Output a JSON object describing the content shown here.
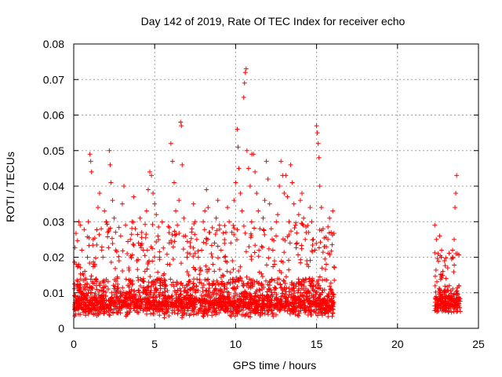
{
  "chart_data": {
    "type": "scatter",
    "title": "Day 142 of 2019, Rate Of TEC Index for receiver echo",
    "xlabel": "GPS time / hours",
    "ylabel": "ROTI / TECUs",
    "xlim": [
      0,
      25
    ],
    "ylim": [
      0,
      0.08
    ],
    "x_ticks": [
      0,
      5,
      10,
      15,
      20,
      25
    ],
    "y_ticks": [
      0,
      0.01,
      0.02,
      0.03,
      0.04,
      0.05,
      0.06,
      0.07,
      0.08
    ],
    "x_tick_labels": [
      "0",
      "5",
      "10",
      "15",
      "20",
      "25"
    ],
    "y_tick_labels": [
      "0",
      "0.01",
      "0.02",
      "0.03",
      "0.04",
      "0.05",
      "0.06",
      "0.07",
      "0.08"
    ],
    "grid": true,
    "marker": "+",
    "color": "#ff0000",
    "series": [
      {
        "points": [
          [
            0.1,
            0.009
          ],
          [
            0.2,
            0.012
          ],
          [
            0.3,
            0.018
          ],
          [
            0.4,
            0.029
          ],
          [
            0.5,
            0.022
          ],
          [
            0.6,
            0.015
          ],
          [
            0.7,
            0.011
          ],
          [
            0.8,
            0.008
          ],
          [
            0.9,
            0.03
          ],
          [
            1.0,
            0.049
          ],
          [
            1.05,
            0.047
          ],
          [
            1.1,
            0.044
          ],
          [
            1.2,
            0.025
          ],
          [
            1.3,
            0.018
          ],
          [
            1.4,
            0.012
          ],
          [
            1.5,
            0.034
          ],
          [
            1.6,
            0.038
          ],
          [
            1.7,
            0.028
          ],
          [
            1.8,
            0.02
          ],
          [
            1.9,
            0.033
          ],
          [
            2.0,
            0.03
          ],
          [
            2.1,
            0.027
          ],
          [
            2.2,
            0.05
          ],
          [
            2.25,
            0.046
          ],
          [
            2.3,
            0.041
          ],
          [
            2.4,
            0.036
          ],
          [
            2.5,
            0.031
          ],
          [
            2.6,
            0.022
          ],
          [
            2.7,
            0.014
          ],
          [
            2.8,
            0.019
          ],
          [
            2.9,
            0.026
          ],
          [
            3.0,
            0.035
          ],
          [
            3.1,
            0.04
          ],
          [
            3.2,
            0.029
          ],
          [
            3.3,
            0.021
          ],
          [
            3.4,
            0.017
          ],
          [
            3.5,
            0.025
          ],
          [
            3.6,
            0.03
          ],
          [
            3.7,
            0.037
          ],
          [
            3.8,
            0.028
          ],
          [
            3.9,
            0.019
          ],
          [
            4.0,
            0.024
          ],
          [
            4.1,
            0.031
          ],
          [
            4.2,
            0.027
          ],
          [
            4.3,
            0.022
          ],
          [
            4.4,
            0.016
          ],
          [
            4.5,
            0.033
          ],
          [
            4.6,
            0.039
          ],
          [
            4.7,
            0.044
          ],
          [
            4.8,
            0.043
          ],
          [
            4.9,
            0.038
          ],
          [
            5.0,
            0.035
          ],
          [
            5.1,
            0.032
          ],
          [
            5.2,
            0.026
          ],
          [
            5.3,
            0.02
          ],
          [
            5.4,
            0.014
          ],
          [
            5.5,
            0.01
          ],
          [
            5.6,
            0.003
          ],
          [
            5.7,
            0.012
          ],
          [
            5.8,
            0.018
          ],
          [
            5.9,
            0.024
          ],
          [
            6.0,
            0.052
          ],
          [
            6.1,
            0.047
          ],
          [
            6.2,
            0.041
          ],
          [
            6.3,
            0.033
          ],
          [
            6.4,
            0.029
          ],
          [
            6.5,
            0.036
          ],
          [
            6.6,
            0.058
          ],
          [
            6.65,
            0.057
          ],
          [
            6.7,
            0.046
          ],
          [
            6.8,
            0.031
          ],
          [
            6.9,
            0.026
          ],
          [
            7.0,
            0.02
          ],
          [
            7.1,
            0.015
          ],
          [
            7.2,
            0.023
          ],
          [
            7.3,
            0.028
          ],
          [
            7.4,
            0.035
          ],
          [
            7.5,
            0.03
          ],
          [
            7.6,
            0.025
          ],
          [
            7.7,
            0.02
          ],
          [
            7.8,
            0.017
          ],
          [
            7.9,
            0.022
          ],
          [
            8.0,
            0.03
          ],
          [
            8.1,
            0.033
          ],
          [
            8.2,
            0.039
          ],
          [
            8.3,
            0.034
          ],
          [
            8.4,
            0.027
          ],
          [
            8.5,
            0.021
          ],
          [
            8.6,
            0.018
          ],
          [
            8.7,
            0.024
          ],
          [
            8.8,
            0.031
          ],
          [
            8.9,
            0.036
          ],
          [
            9.0,
            0.029
          ],
          [
            9.1,
            0.022
          ],
          [
            9.2,
            0.015
          ],
          [
            9.3,
            0.02
          ],
          [
            9.4,
            0.027
          ],
          [
            9.5,
            0.034
          ],
          [
            9.6,
            0.03
          ],
          [
            9.7,
            0.024
          ],
          [
            9.8,
            0.019
          ],
          [
            9.9,
            0.036
          ],
          [
            10.0,
            0.041
          ],
          [
            10.1,
            0.056
          ],
          [
            10.15,
            0.051
          ],
          [
            10.2,
            0.045
          ],
          [
            10.3,
            0.038
          ],
          [
            10.4,
            0.033
          ],
          [
            10.5,
            0.065
          ],
          [
            10.55,
            0.069
          ],
          [
            10.6,
            0.072
          ],
          [
            10.65,
            0.073
          ],
          [
            10.7,
            0.05
          ],
          [
            10.8,
            0.045
          ],
          [
            10.9,
            0.04
          ],
          [
            11.0,
            0.049
          ],
          [
            11.1,
            0.049
          ],
          [
            11.2,
            0.044
          ],
          [
            11.3,
            0.038
          ],
          [
            11.4,
            0.033
          ],
          [
            11.5,
            0.028
          ],
          [
            11.6,
            0.023
          ],
          [
            11.7,
            0.031
          ],
          [
            11.8,
            0.036
          ],
          [
            11.9,
            0.047
          ],
          [
            12.0,
            0.042
          ],
          [
            12.1,
            0.035
          ],
          [
            12.2,
            0.028
          ],
          [
            12.3,
            0.022
          ],
          [
            12.4,
            0.018
          ],
          [
            12.5,
            0.026
          ],
          [
            12.6,
            0.032
          ],
          [
            12.7,
            0.04
          ],
          [
            12.8,
            0.047
          ],
          [
            12.9,
            0.043
          ],
          [
            13.0,
            0.038
          ],
          [
            13.1,
            0.043
          ],
          [
            13.2,
            0.037
          ],
          [
            13.3,
            0.03
          ],
          [
            13.4,
            0.046
          ],
          [
            13.5,
            0.041
          ],
          [
            13.6,
            0.035
          ],
          [
            13.7,
            0.029
          ],
          [
            13.8,
            0.024
          ],
          [
            13.9,
            0.032
          ],
          [
            14.0,
            0.036
          ],
          [
            14.1,
            0.038
          ],
          [
            14.2,
            0.031
          ],
          [
            14.3,
            0.025
          ],
          [
            14.4,
            0.019
          ],
          [
            14.5,
            0.027
          ],
          [
            14.6,
            0.034
          ],
          [
            14.7,
            0.03
          ],
          [
            14.8,
            0.025
          ],
          [
            14.9,
            0.022
          ],
          [
            15.0,
            0.057
          ],
          [
            15.05,
            0.055
          ],
          [
            15.1,
            0.052
          ],
          [
            15.15,
            0.048
          ],
          [
            15.2,
            0.04
          ],
          [
            15.3,
            0.034
          ],
          [
            15.4,
            0.028
          ],
          [
            15.5,
            0.023
          ],
          [
            15.6,
            0.018
          ],
          [
            15.7,
            0.025
          ],
          [
            15.8,
            0.031
          ],
          [
            15.9,
            0.027
          ],
          [
            16.0,
            0.033
          ],
          [
            22.3,
            0.029
          ],
          [
            22.4,
            0.025
          ],
          [
            22.5,
            0.021
          ],
          [
            22.6,
            0.026
          ],
          [
            22.7,
            0.02
          ],
          [
            22.8,
            0.016
          ],
          [
            22.9,
            0.019
          ],
          [
            23.0,
            0.014
          ],
          [
            23.1,
            0.017
          ],
          [
            23.2,
            0.012
          ],
          [
            23.3,
            0.009
          ],
          [
            23.4,
            0.022
          ],
          [
            23.5,
            0.025
          ],
          [
            23.55,
            0.034
          ],
          [
            23.6,
            0.038
          ],
          [
            23.65,
            0.043
          ],
          [
            23.7,
            0.021
          ],
          [
            23.8,
            0.012
          ]
        ]
      }
    ],
    "density_bands": [
      {
        "x": [
          0.05,
          16.1
        ],
        "base": [
          0.003,
          0.006
        ],
        "mid": [
          0.006,
          0.014
        ],
        "top": [
          0.014,
          0.03
        ]
      },
      {
        "x": [
          22.3,
          23.9
        ],
        "base": [
          0.004,
          0.006
        ],
        "mid": [
          0.006,
          0.012
        ],
        "top": [
          0.012,
          0.022
        ]
      }
    ]
  }
}
